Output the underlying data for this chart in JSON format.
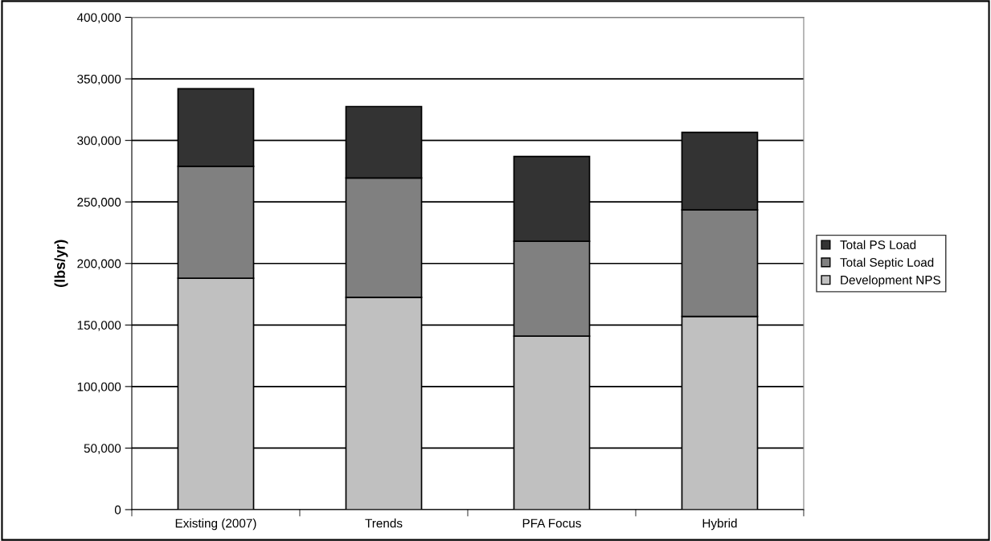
{
  "chart_data": {
    "type": "bar",
    "stacked": true,
    "ylabel": "(lbs/yr)",
    "categories": [
      "Existing (2007)",
      "Trends",
      "PFA Focus",
      "Hybrid"
    ],
    "series": [
      {
        "name": "Development NPS",
        "color": "#c0c0c0",
        "values": [
          188000,
          172500,
          141000,
          157000
        ]
      },
      {
        "name": "Total Septic Load",
        "color": "#808080",
        "values": [
          91000,
          97000,
          77000,
          86500
        ]
      },
      {
        "name": "Total PS Load",
        "color": "#333333",
        "values": [
          63000,
          58000,
          69000,
          63000
        ]
      }
    ],
    "ylim": [
      0,
      400000
    ],
    "yticks": [
      {
        "value": 0,
        "label": "0"
      },
      {
        "value": 50000,
        "label": "50,000"
      },
      {
        "value": 100000,
        "label": "100,000"
      },
      {
        "value": 150000,
        "label": "150,000"
      },
      {
        "value": 200000,
        "label": "200,000"
      },
      {
        "value": 250000,
        "label": "250,000"
      },
      {
        "value": 300000,
        "label": "300,000"
      },
      {
        "value": 350000,
        "label": "350,000"
      },
      {
        "value": 400000,
        "label": "400,000"
      }
    ],
    "grid": "y",
    "legend": "right"
  }
}
